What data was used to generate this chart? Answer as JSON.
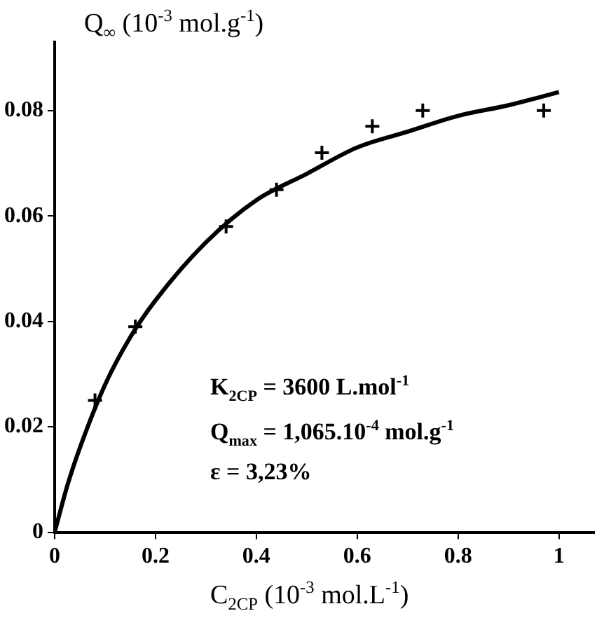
{
  "chart_data": {
    "type": "scatter",
    "xlabel": "C$_{2CP}$ (10$^{-3}$ mol.L$^{-1}$)",
    "ylabel": "Q$_{∞}$ (10$^{-3}$ mol.g$^{-1}$)",
    "xlim": [
      0,
      1.07
    ],
    "xticks": [
      0,
      0.2,
      0.4,
      0.6,
      0.8,
      1
    ],
    "ylim": [
      0,
      0.093
    ],
    "yticks": [
      0,
      0.02,
      0.04,
      0.06,
      0.08
    ],
    "grid": false,
    "legend": false,
    "series": [
      {
        "color": "#000000",
        "marker": "cross",
        "x": [
          0.08,
          0.16,
          0.34,
          0.44,
          0.53,
          0.63,
          0.73,
          0.97
        ],
        "values": [
          0.025,
          0.039,
          0.058,
          0.065,
          0.072,
          0.077,
          0.08,
          0.08
        ]
      },
      {
        "type": "line",
        "color": "#000000",
        "marker": "none",
        "line_style": "solid",
        "x": [
          0,
          0.025,
          0.05,
          0.1,
          0.15,
          0.2,
          0.3,
          0.4,
          0.5,
          0.6,
          0.7,
          0.8,
          0.9,
          1.0
        ],
        "values": [
          0,
          0.0088,
          0.016,
          0.028,
          0.037,
          0.044,
          0.055,
          0.063,
          0.068,
          0.073,
          0.076,
          0.079,
          0.081,
          0.0835
        ]
      }
    ],
    "annotations": [
      "K$_{2CP}$ = 3600 L.mol$^{-1}$",
      "Q$_{max}$ = 1,065.10$^{-4}$ mol.g$^{-1}$",
      "ε = 3,23%"
    ]
  }
}
